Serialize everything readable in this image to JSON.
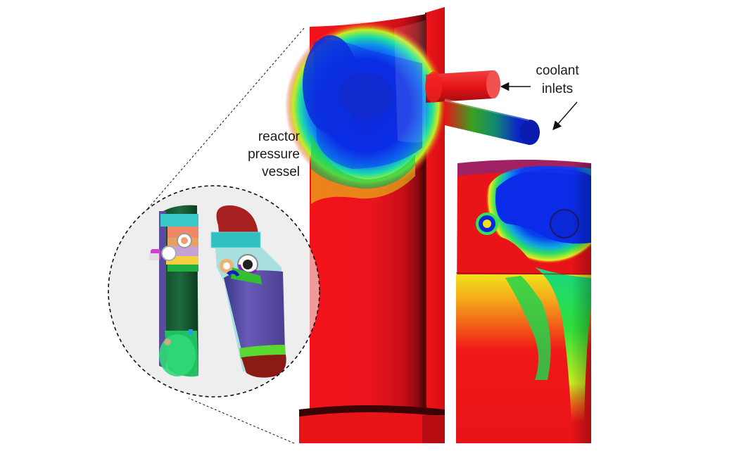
{
  "labels": {
    "reactor_line1": "reactor",
    "reactor_line2": "pressure",
    "reactor_line3": "vessel",
    "coolant_line1": "coolant",
    "coolant_line2": "inlets"
  },
  "colors": {
    "hot": "#e8141c",
    "cold": "#0a22d8",
    "mid_green": "#22d43a",
    "mid_yellow": "#f2e81a",
    "inset_background": "#eeeeee"
  }
}
